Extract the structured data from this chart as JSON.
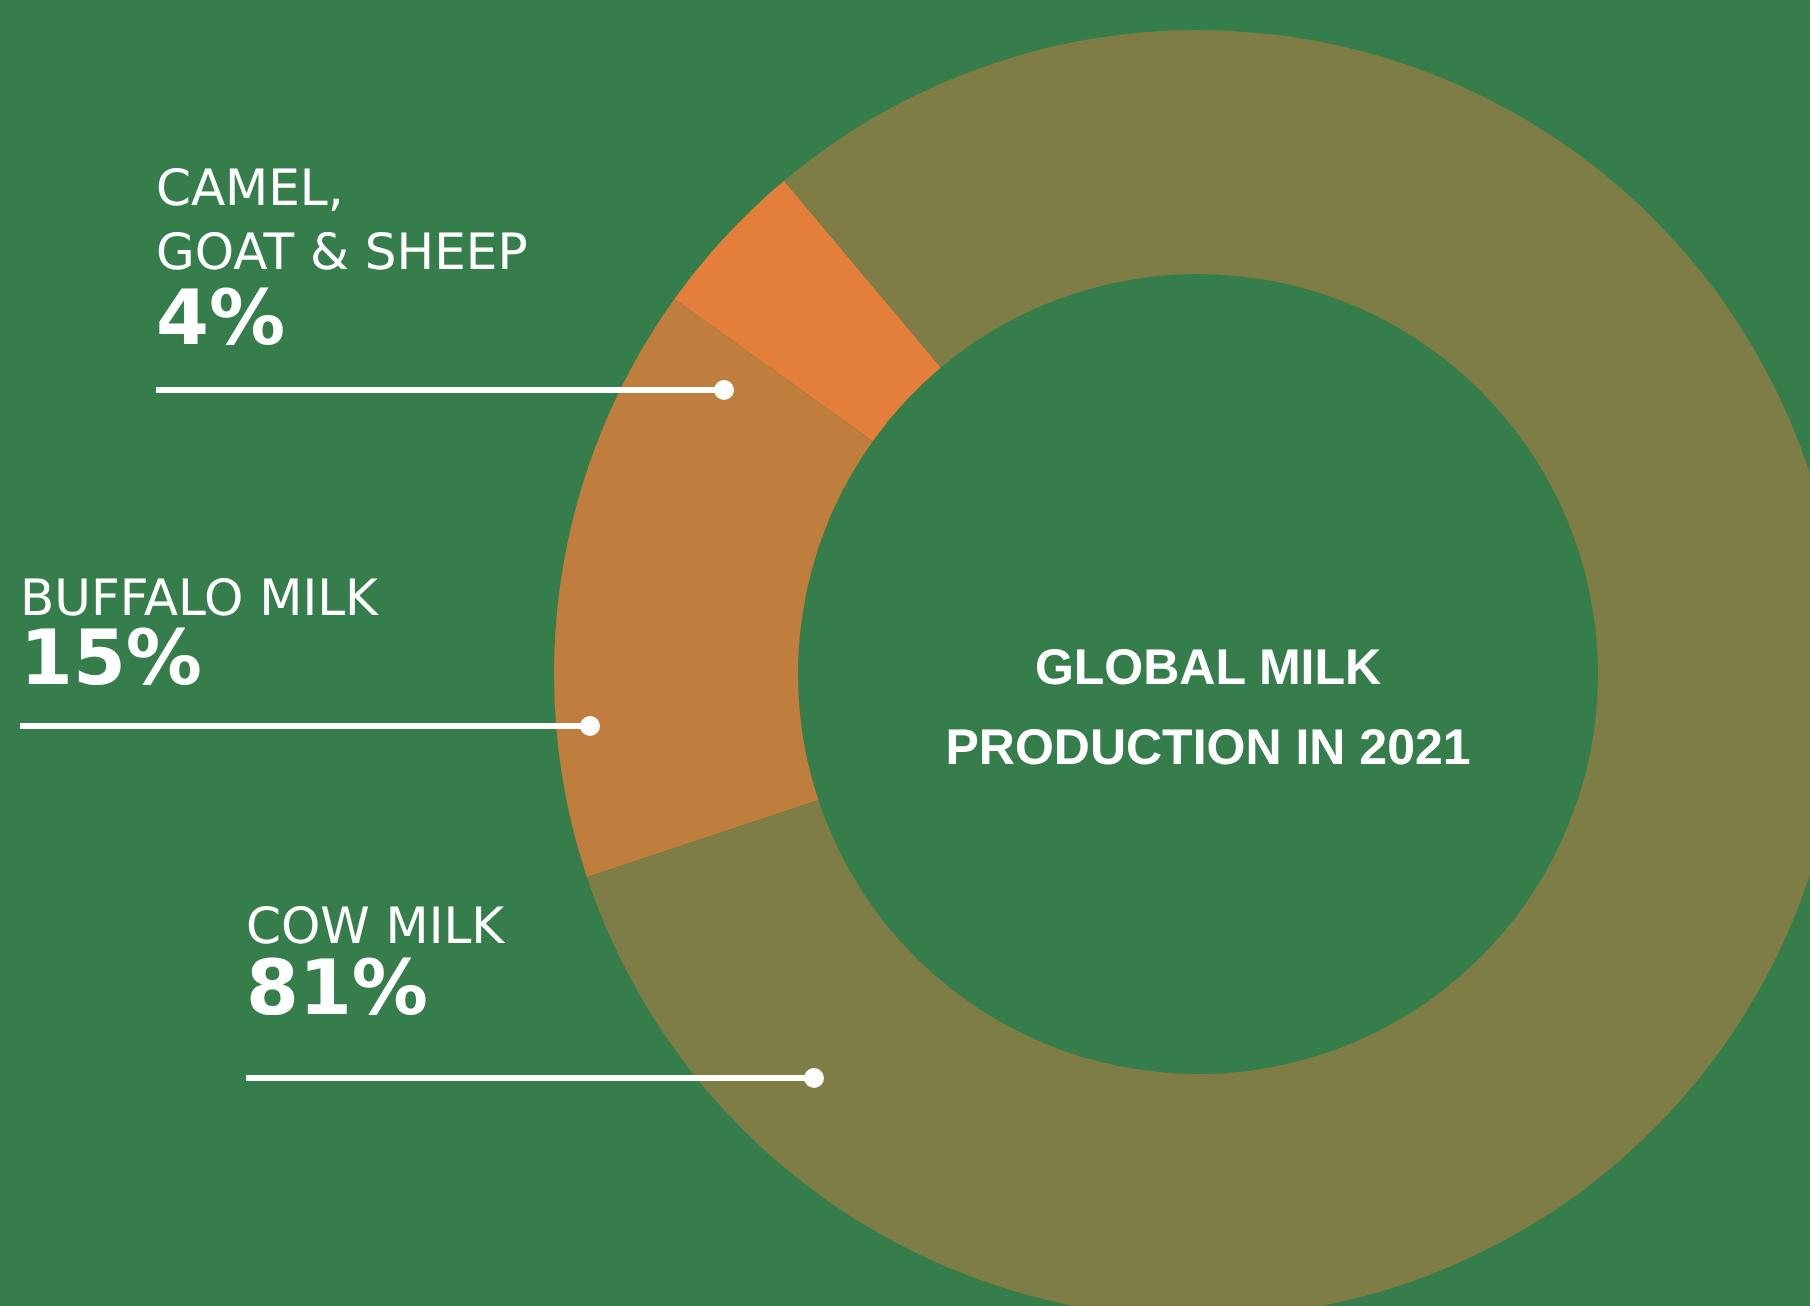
{
  "chart_data": {
    "type": "donut",
    "title": "GLOBAL MILK\nPRODUCTION IN 2021",
    "categories": [
      "CAMEL,\nGOAT & SHEEP",
      "BUFFALO MILK",
      "COW MILK"
    ],
    "values": [
      4,
      15,
      81
    ],
    "value_labels": [
      "4%",
      "15%",
      "81%"
    ],
    "colors": [
      "#e37e3b",
      "#bf7d3e",
      "#7d7d45"
    ],
    "legend": false
  }
}
